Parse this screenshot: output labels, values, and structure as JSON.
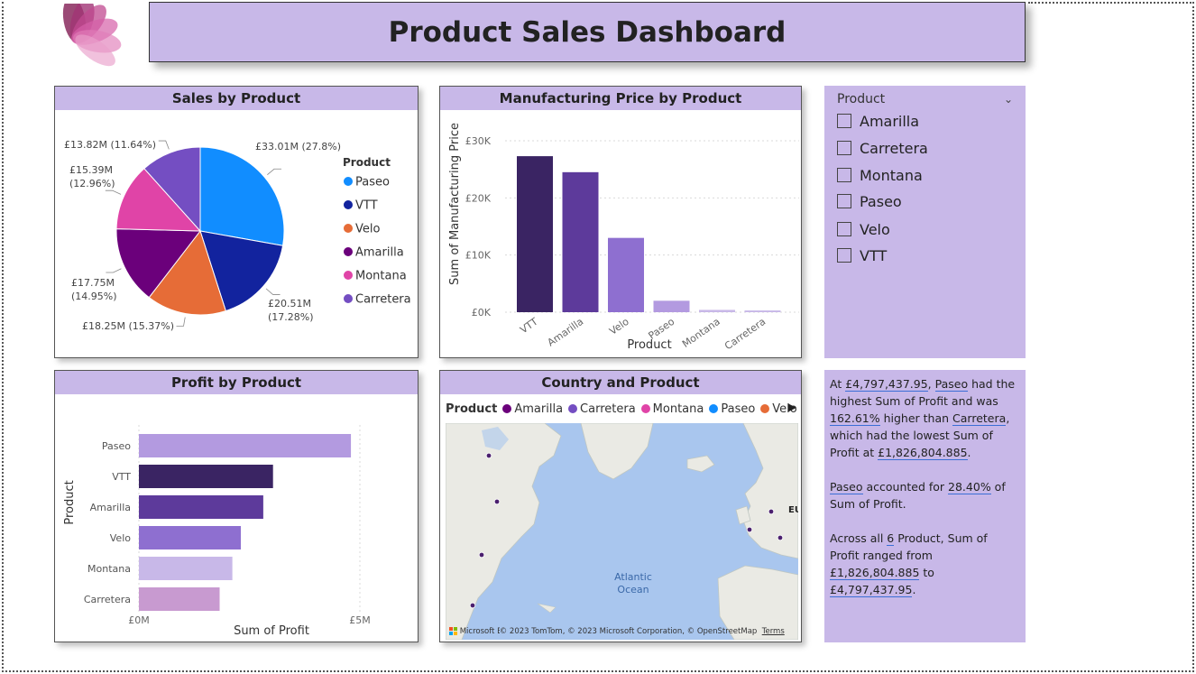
{
  "page": {
    "title": "Product Sales Dashboard"
  },
  "colors": {
    "header_bg": "#c8b8e8",
    "Paseo": "#118dff",
    "VTT": "#12239e",
    "Velo": "#e66c37",
    "Amarilla": "#6b007b",
    "Montana": "#e044a7",
    "Carretera": "#744ec2"
  },
  "sales_by_product": {
    "title": "Sales by Product",
    "legend_title": "Product",
    "chart_data": {
      "type": "pie",
      "title": "Sales by Product",
      "slices": [
        {
          "label": "Paseo",
          "value": 33.01,
          "display": "£33.01M (27.8%)",
          "color": "#118dff"
        },
        {
          "label": "VTT",
          "value": 20.51,
          "display": "£20.51M (17.28%)",
          "color": "#12239e"
        },
        {
          "label": "Velo",
          "value": 18.25,
          "display": "£18.25M (15.37%)",
          "color": "#e66c37"
        },
        {
          "label": "Amarilla",
          "value": 17.75,
          "display": "£17.75M (14.95%)",
          "color": "#6b007b"
        },
        {
          "label": "Montana",
          "value": 15.39,
          "display": "£15.39M (12.96%)",
          "color": "#e044a7"
        },
        {
          "label": "Carretera",
          "value": 13.82,
          "display": "£13.82M (11.64%)",
          "color": "#744ec2"
        }
      ],
      "unit": "£M",
      "legend_position": "right"
    }
  },
  "manufacturing_price": {
    "title": "Manufacturing Price by Product",
    "chart_data": {
      "type": "bar",
      "title": "Manufacturing Price by Product",
      "categories": [
        "VTT",
        "Amarilla",
        "Velo",
        "Paseo",
        "Montana",
        "Carretera"
      ],
      "values": [
        27300,
        24500,
        13000,
        2000,
        400,
        300
      ],
      "colors": [
        "#3a2463",
        "#5d3a9b",
        "#8e6fd0",
        "#b39ae0",
        "#c8b8e8",
        "#c8b8e8"
      ],
      "xlabel": "Product",
      "ylabel": "Sum of Manufacturing Price",
      "ylim": [
        0,
        30000
      ],
      "yticks": [
        {
          "v": 0,
          "label": "£0K"
        },
        {
          "v": 10000,
          "label": "£10K"
        },
        {
          "v": 20000,
          "label": "£20K"
        },
        {
          "v": 30000,
          "label": "£30K"
        }
      ],
      "grid": true
    }
  },
  "profit_by_product": {
    "title": "Profit by Product",
    "chart_data": {
      "type": "bar",
      "orientation": "horizontal",
      "title": "Profit by Product",
      "categories": [
        "Paseo",
        "VTT",
        "Amarilla",
        "Velo",
        "Montana",
        "Carretera"
      ],
      "values": [
        4797437.95,
        3034602.0,
        2814104.0,
        2305992.0,
        2114754.0,
        1826804.885
      ],
      "colors": [
        "#b39ae0",
        "#3a2463",
        "#5d3a9b",
        "#8e6fd0",
        "#c8b8e8",
        "#c89ad0"
      ],
      "xlabel": "Sum of Profit",
      "ylabel": "Product",
      "xlim": [
        0,
        5000000
      ],
      "xticks": [
        {
          "v": 0,
          "label": "£0M"
        },
        {
          "v": 5000000,
          "label": "£5M"
        }
      ],
      "grid": true
    }
  },
  "map": {
    "title": "Country and Product",
    "legend_title": "Product",
    "legend_items": [
      {
        "label": "Amarilla",
        "color": "#6b007b"
      },
      {
        "label": "Carretera",
        "color": "#744ec2"
      },
      {
        "label": "Montana",
        "color": "#e044a7"
      },
      {
        "label": "Paseo",
        "color": "#118dff"
      },
      {
        "label": "Velo",
        "color": "#e66c37"
      }
    ],
    "ocean_label_1": "Atlantic",
    "ocean_label_2": "Ocean",
    "edge_label": "EU",
    "brand": "Microsoft Bing",
    "credit": "© 2023 TomTom, © 2023 Microsoft Corporation, © OpenStreetMap",
    "terms": "Terms"
  },
  "slicer": {
    "title": "Product",
    "items": [
      "Amarilla",
      "Carretera",
      "Montana",
      "Paseo",
      "Velo",
      "VTT"
    ]
  },
  "narrative": {
    "p1_a": "At ",
    "p1_value": "£4,797,437.95",
    "p1_b": ", ",
    "p1_product": "Paseo",
    "p1_c": " had the highest Sum of Profit and was ",
    "p1_pct": "162.61%",
    "p1_d": " higher than ",
    "p1_low": "Carretera",
    "p1_e": ", which had the lowest Sum of Profit at ",
    "p1_lowval": "£1,826,804.885",
    "p1_f": ".",
    "p2_product": "Paseo",
    "p2_a": " accounted for ",
    "p2_pct": "28.40%",
    "p2_b": " of Sum of Profit.",
    "p3_a": "Across all ",
    "p3_count": "6",
    "p3_b": " Product, Sum of Profit ranged from ",
    "p3_min": "£1,826,804.885",
    "p3_c": " to ",
    "p3_max": "£4,797,437.95",
    "p3_d": "."
  }
}
